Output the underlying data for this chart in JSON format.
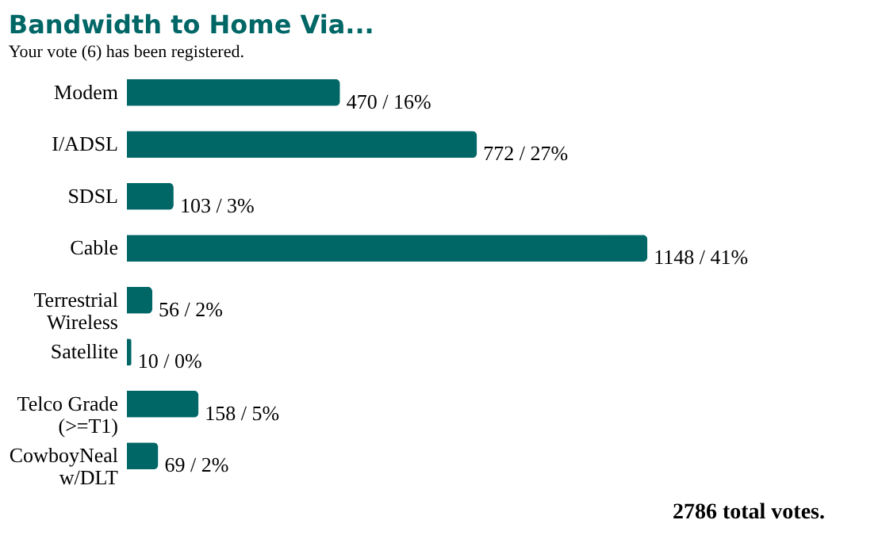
{
  "chart_data": {
    "type": "bar",
    "orientation": "horizontal",
    "title": "Bandwidth to Home Via...",
    "subtitle": "Your vote (6) has been registered.",
    "categories": [
      "Modem",
      "I/ADSL",
      "SDSL",
      "Cable",
      "Terrestrial\nWireless",
      "Satellite",
      "Telco Grade\n(>=T1)",
      "CowboyNeal\nw/DLT"
    ],
    "values": [
      470,
      772,
      103,
      1148,
      56,
      10,
      158,
      69
    ],
    "value_labels": [
      "470 / 16%",
      "772 / 27%",
      "103 / 3%",
      "1148 / 41%",
      "56 / 2%",
      "10 / 0%",
      "158 / 5%",
      "69 / 2%"
    ],
    "color": "#006666",
    "annotations": [
      "2786 total votes."
    ]
  }
}
